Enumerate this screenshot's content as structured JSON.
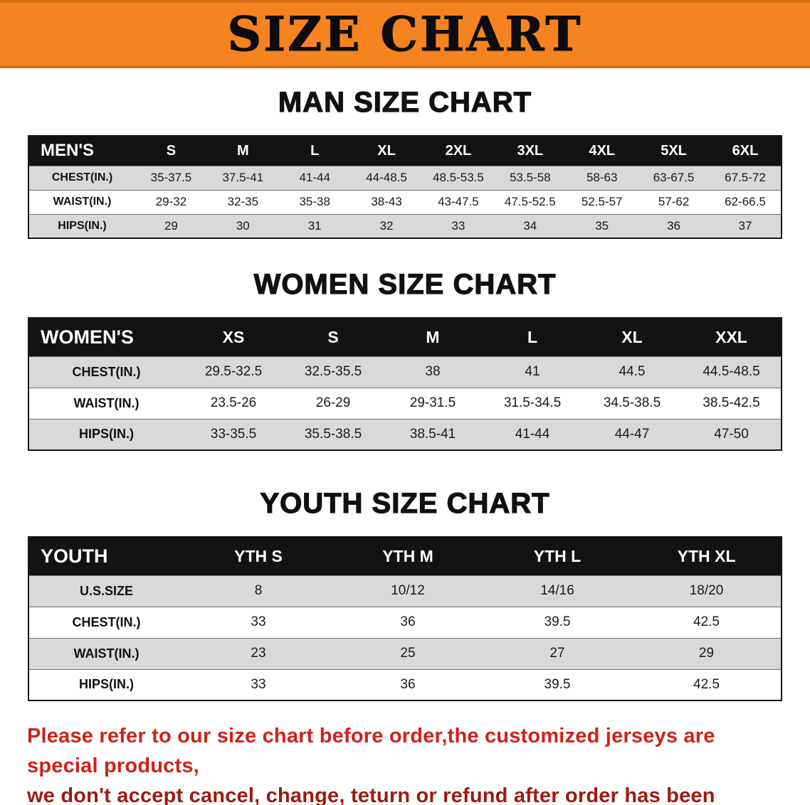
{
  "banner": {
    "title": "SIZE CHART"
  },
  "sections": [
    {
      "id": "men",
      "heading": "MAN SIZE CHART",
      "table": {
        "header": [
          "MEN'S",
          "S",
          "M",
          "L",
          "XL",
          "2XL",
          "3XL",
          "4XL",
          "5XL",
          "6XL"
        ],
        "rows": [
          [
            "CHEST(IN.)",
            "35-37.5",
            "37.5-41",
            "41-44",
            "44-48.5",
            "48.5-53.5",
            "53.5-58",
            "58-63",
            "63-67.5",
            "67.5-72"
          ],
          [
            "WAIST(IN.)",
            "29-32",
            "32-35",
            "35-38",
            "38-43",
            "43-47.5",
            "47.5-52.5",
            "52.5-57",
            "57-62",
            "62-66.5"
          ],
          [
            "HIPS(IN.)",
            "29",
            "30",
            "31",
            "32",
            "33",
            "34",
            "35",
            "36",
            "37"
          ]
        ]
      }
    },
    {
      "id": "women",
      "heading": "WOMEN SIZE CHART",
      "table": {
        "header": [
          "WOMEN'S",
          "XS",
          "S",
          "M",
          "L",
          "XL",
          "XXL"
        ],
        "rows": [
          [
            "CHEST(IN.)",
            "29.5-32.5",
            "32.5-35.5",
            "38",
            "41",
            "44.5",
            "44.5-48.5"
          ],
          [
            "WAIST(IN.)",
            "23.5-26",
            "26-29",
            "29-31.5",
            "31.5-34.5",
            "34.5-38.5",
            "38.5-42.5"
          ],
          [
            "HIPS(IN.)",
            "33-35.5",
            "35.5-38.5",
            "38.5-41",
            "41-44",
            "44-47",
            "47-50"
          ]
        ]
      }
    },
    {
      "id": "youth",
      "heading": "YOUTH SIZE CHART",
      "table": {
        "header": [
          "YOUTH",
          "YTH S",
          "YTH M",
          "YTH L",
          "YTH XL"
        ],
        "rows": [
          [
            "U.S.SIZE",
            "8",
            "10/12",
            "14/16",
            "18/20"
          ],
          [
            "CHEST(IN.)",
            "33",
            "36",
            "39.5",
            "42.5"
          ],
          [
            "WAIST(IN.)",
            "23",
            "25",
            "27",
            "29"
          ],
          [
            "HIPS(IN.)",
            "33",
            "36",
            "39.5",
            "42.5"
          ]
        ]
      }
    }
  ],
  "footer": {
    "line1": "Please refer to our size chart before order,the customized jerseys are special products,",
    "line2": "we don't accept cancel, change, teturn or refund after order has been placed!"
  },
  "colors": {
    "banner_background": "#F5831F",
    "table_header_background": "#131313",
    "row_stripe_gray": "#D9D9D9",
    "disclaimer_red_line1": "#CF2218",
    "disclaimer_red_line2": "#9D1A10"
  }
}
